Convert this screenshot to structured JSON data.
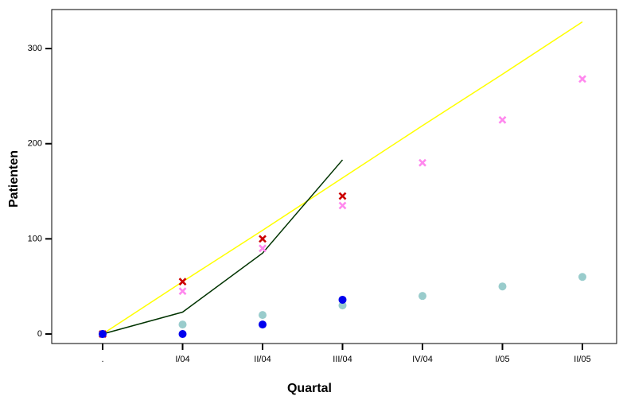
{
  "chart_data": {
    "type": "line",
    "x_label": "Quartal",
    "y_label": "Patienten",
    "categories": [
      ".",
      "I/04",
      "II/04",
      "III/04",
      "IV/04",
      "I/05",
      "II/05"
    ],
    "ylim": [
      -10,
      341
    ],
    "yticks": [
      0,
      100,
      200,
      300
    ],
    "series": [
      {
        "color": "#ffff00",
        "style": "line",
        "values": [
          0,
          55,
          109,
          164,
          219,
          273,
          328
        ]
      },
      {
        "color": "#003300",
        "style": "line",
        "values": [
          0,
          23,
          85,
          183,
          null,
          null,
          null
        ]
      },
      {
        "color": "#99cccc",
        "style": "circle",
        "values": [
          0,
          10,
          20,
          30,
          40,
          50,
          60
        ]
      },
      {
        "color": "#ff88ee",
        "style": "cross",
        "values": [
          0,
          45,
          90,
          135,
          180,
          225,
          268
        ]
      },
      {
        "color": "#cc0000",
        "style": "cross",
        "values": [
          0,
          55,
          100,
          145,
          null,
          null,
          null
        ]
      },
      {
        "color": "#0000ee",
        "style": "circle",
        "values": [
          0,
          0,
          10,
          36,
          null,
          null,
          null
        ]
      }
    ]
  }
}
